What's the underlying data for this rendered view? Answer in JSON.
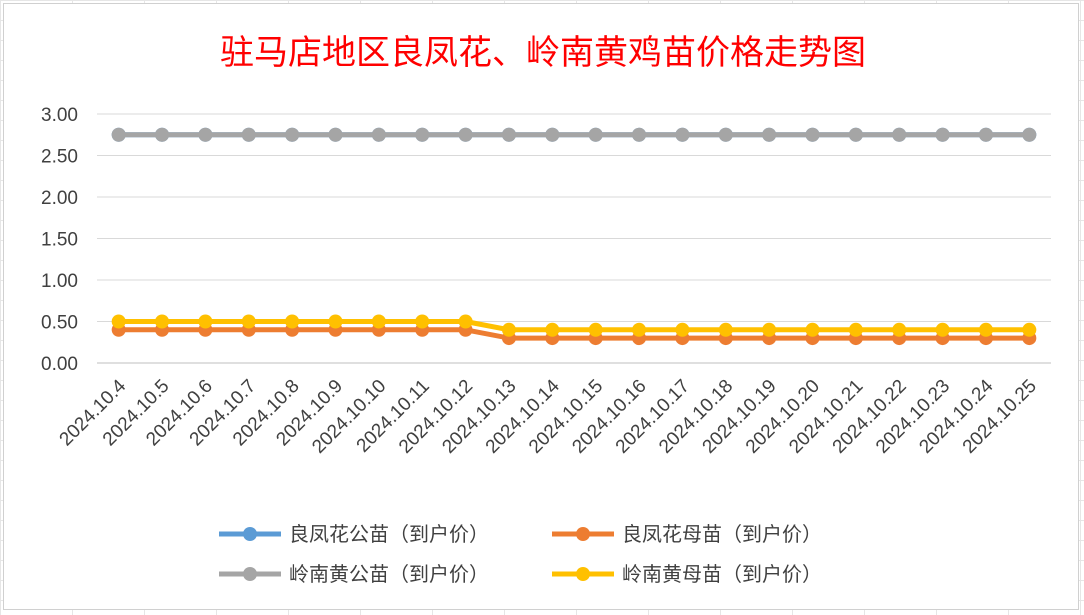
{
  "chart_data": {
    "type": "line",
    "title": "驻马店地区良凤花、岭南黄鸡苗价格走势图",
    "title_color": "#ff0000",
    "xlabel": "",
    "ylabel": "",
    "ylim": [
      0,
      3.0
    ],
    "y_ticks": [
      "3.00",
      "2.50",
      "2.00",
      "1.50",
      "1.00",
      "0.50",
      "0.00"
    ],
    "y_tick_values": [
      3.0,
      2.5,
      2.0,
      1.5,
      1.0,
      0.5,
      0.0
    ],
    "grid": true,
    "legend_position": "bottom",
    "categories": [
      "2024.10.4",
      "2024.10.5",
      "2024.10.6",
      "2024.10.7",
      "2024.10.8",
      "2024.10.9",
      "2024.10.10",
      "2024.10.11",
      "2024.10.12",
      "2024.10.13",
      "2024.10.14",
      "2024.10.15",
      "2024.10.16",
      "2024.10.17",
      "2024.10.18",
      "2024.10.19",
      "2024.10.20",
      "2024.10.21",
      "2024.10.22",
      "2024.10.23",
      "2024.10.24",
      "2024.10.25"
    ],
    "series": [
      {
        "name": "良凤花公苗（到户价）",
        "color": "#5b9bd5",
        "values": [
          2.75,
          2.75,
          2.75,
          2.75,
          2.75,
          2.75,
          2.75,
          2.75,
          2.75,
          2.75,
          2.75,
          2.75,
          2.75,
          2.75,
          2.75,
          2.75,
          2.75,
          2.75,
          2.75,
          2.75,
          2.75,
          2.75
        ]
      },
      {
        "name": "良凤花母苗（到户价）",
        "color": "#ed7d31",
        "values": [
          0.4,
          0.4,
          0.4,
          0.4,
          0.4,
          0.4,
          0.4,
          0.4,
          0.4,
          0.3,
          0.3,
          0.3,
          0.3,
          0.3,
          0.3,
          0.3,
          0.3,
          0.3,
          0.3,
          0.3,
          0.3,
          0.3
        ]
      },
      {
        "name": "岭南黄公苗（到户价）",
        "color": "#a5a5a5",
        "values": [
          2.75,
          2.75,
          2.75,
          2.75,
          2.75,
          2.75,
          2.75,
          2.75,
          2.75,
          2.75,
          2.75,
          2.75,
          2.75,
          2.75,
          2.75,
          2.75,
          2.75,
          2.75,
          2.75,
          2.75,
          2.75,
          2.75
        ]
      },
      {
        "name": "岭南黄母苗（到户价）",
        "color": "#ffc000",
        "values": [
          0.5,
          0.5,
          0.5,
          0.5,
          0.5,
          0.5,
          0.5,
          0.5,
          0.5,
          0.4,
          0.4,
          0.4,
          0.4,
          0.4,
          0.4,
          0.4,
          0.4,
          0.4,
          0.4,
          0.4,
          0.4,
          0.4
        ]
      }
    ]
  }
}
